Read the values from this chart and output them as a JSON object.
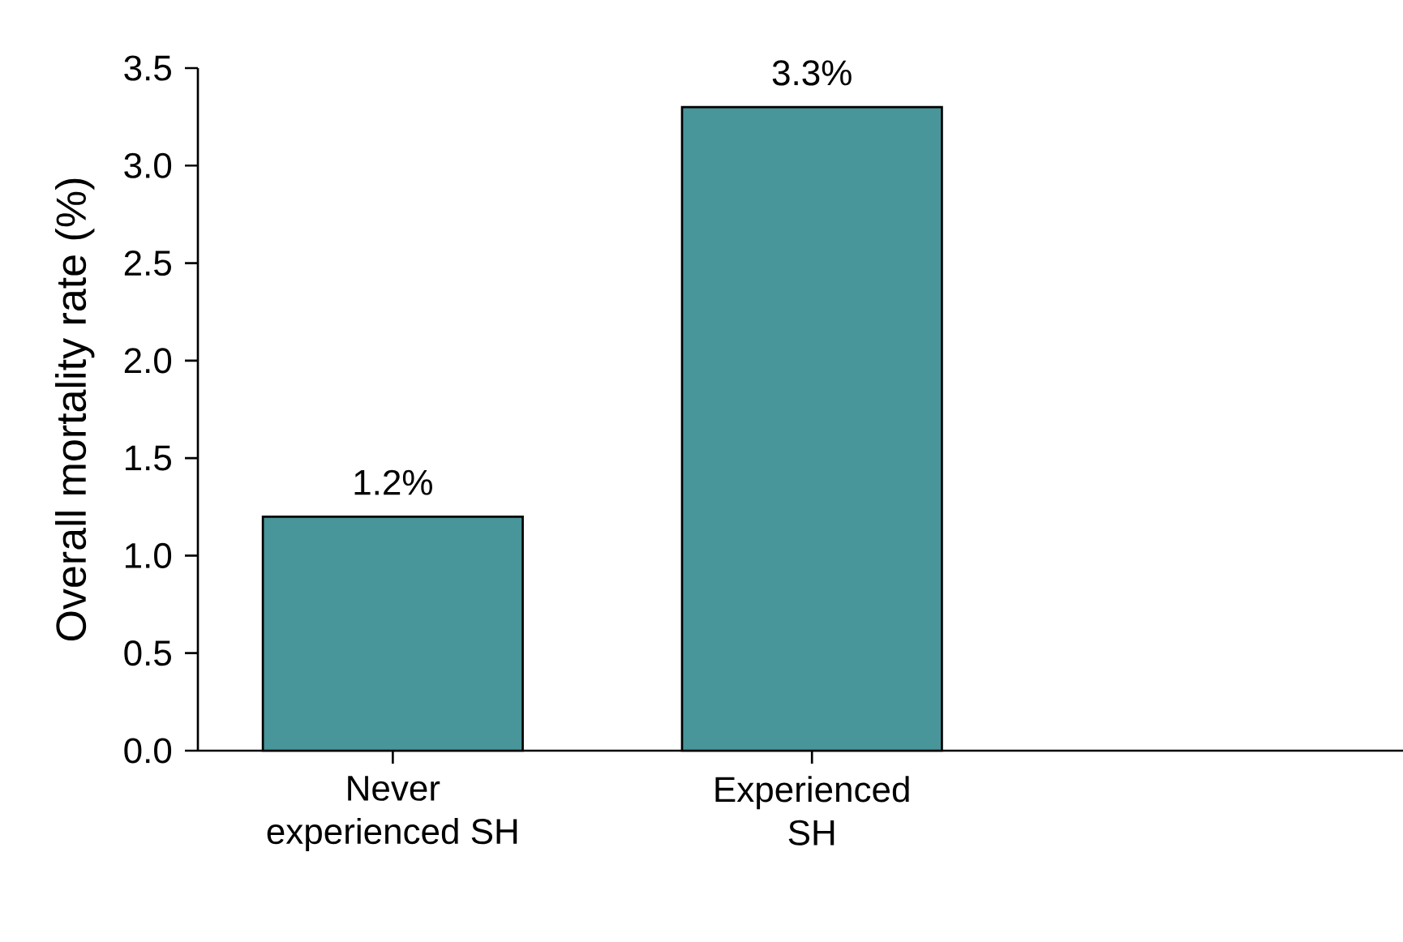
{
  "chart_data": {
    "type": "bar",
    "ylabel": "Overall mortality rate (%)",
    "categories": [
      "Never experienced SH",
      "Experienced SH"
    ],
    "values": [
      1.2,
      3.3
    ],
    "value_labels": [
      "1.2%",
      "3.3%"
    ],
    "color": "#48959a",
    "yticks": [
      {
        "value": 0,
        "label": "0.0"
      },
      {
        "value": 0.5,
        "label": "0.5"
      },
      {
        "value": 1,
        "label": "1.0"
      },
      {
        "value": 1.5,
        "label": "1.5"
      },
      {
        "value": 2,
        "label": "2.0"
      },
      {
        "value": 2.5,
        "label": "2.5"
      },
      {
        "value": 3,
        "label": "3.0"
      },
      {
        "value": 3.5,
        "label": "3.5"
      }
    ],
    "ylim": [
      0,
      3.5
    ]
  }
}
